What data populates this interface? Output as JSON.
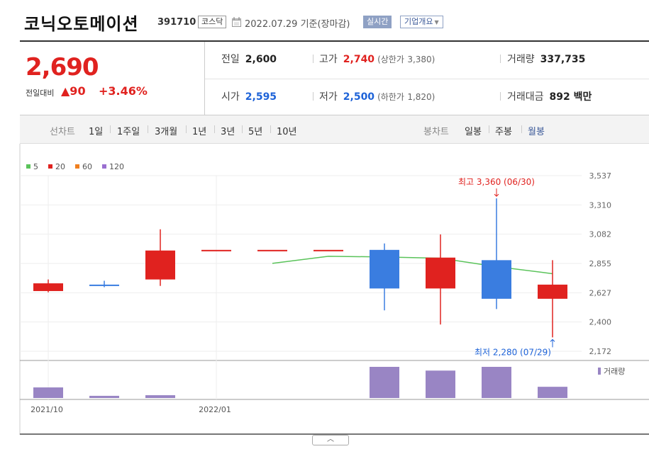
{
  "header": {
    "name": "코닉오토메이션",
    "code": "391710",
    "market": "코스닥",
    "date": "2022.07.29 기준(장마감)",
    "realtime": "실시간",
    "company_info": "기업개요"
  },
  "quote": {
    "price": "2,690",
    "change_label": "전일대비",
    "change_value": "▲90",
    "change_rate": "+3.46%",
    "prev_close": {
      "label": "전일",
      "value": "2,600"
    },
    "high": {
      "label": "고가",
      "value": "2,740",
      "limit_label": "(상한가",
      "limit_value": "3,380)"
    },
    "volume": {
      "label": "거래량",
      "value": "337,735"
    },
    "open": {
      "label": "시가",
      "value": "2,595"
    },
    "low": {
      "label": "저가",
      "value": "2,500",
      "limit_label": "(하한가",
      "limit_value": "1,820)"
    },
    "amount": {
      "label": "거래대금",
      "value": "892 백만"
    }
  },
  "periods": {
    "line_label": "선차트",
    "line_items": [
      "1일",
      "1주일",
      "3개월",
      "1년",
      "3년",
      "5년",
      "10년"
    ],
    "candle_label": "봉차트",
    "candle_items": [
      "일봉",
      "주봉",
      "월봉"
    ],
    "active": "월봉"
  },
  "chart_data": {
    "type": "candlestick",
    "legend": [
      {
        "label": "5",
        "color": "#5ac35a"
      },
      {
        "label": "20",
        "color": "#e0221f"
      },
      {
        "label": "60",
        "color": "#f07f1e"
      },
      {
        "label": "120",
        "color": "#9a6fd0"
      }
    ],
    "y_ticks": [
      "3,537",
      "3,310",
      "3,082",
      "2,855",
      "2,627",
      "2,400",
      "2,172"
    ],
    "ylim": [
      2172,
      3537
    ],
    "x_labels": [
      {
        "label": "2021/10",
        "index": 0
      },
      {
        "label": "2022/01",
        "index": 3
      }
    ],
    "candles": [
      {
        "open": 2700,
        "close": 2640,
        "high": 2730,
        "low": 2630,
        "color": "#e0221f"
      },
      {
        "open": 2690,
        "close": 2680,
        "high": 2720,
        "low": 2670,
        "color": "#3a7de0"
      },
      {
        "open": 2730,
        "close": 2955,
        "high": 3120,
        "low": 2680,
        "color": "#e0221f"
      },
      {
        "open": 2960,
        "close": 2960,
        "high": 2960,
        "low": 2960,
        "color": "#e0221f"
      },
      {
        "open": 2960,
        "close": 2960,
        "high": 2960,
        "low": 2960,
        "color": "#e0221f"
      },
      {
        "open": 2960,
        "close": 2960,
        "high": 2960,
        "low": 2960,
        "color": "#e0221f"
      },
      {
        "open": 2960,
        "close": 2660,
        "high": 3010,
        "low": 2490,
        "color": "#3a7de0"
      },
      {
        "open": 2660,
        "close": 2900,
        "high": 3080,
        "low": 2380,
        "color": "#e0221f"
      },
      {
        "open": 2880,
        "close": 2580,
        "high": 3360,
        "low": 2500,
        "color": "#3a7de0"
      },
      {
        "open": 2580,
        "close": 2690,
        "high": 2880,
        "low": 2280,
        "color": "#e0221f"
      }
    ],
    "ma5": {
      "start_index": 4,
      "values": [
        2855,
        2910,
        2905,
        2895,
        2830,
        2775
      ]
    },
    "volume": [
      0.34,
      0.07,
      0.09,
      0,
      0,
      0,
      1.0,
      0.88,
      1.0,
      0.36
    ],
    "volume_color": "#9985c4",
    "volume_legend": "거래량",
    "max_label": "최고 3,360 (06/30)",
    "min_label": "최저 2,280 (07/29)"
  }
}
